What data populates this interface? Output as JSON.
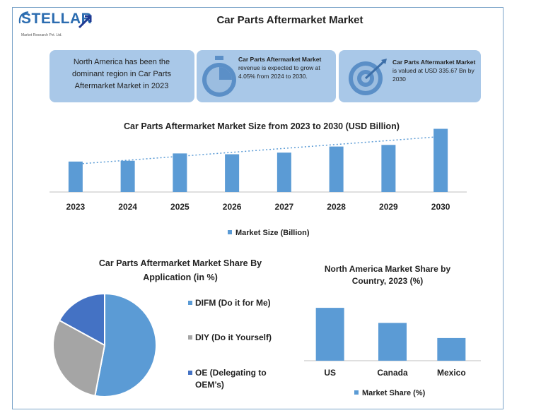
{
  "logo": {
    "text": "STELLAR",
    "subtext": "Market Research Pvt. Ltd."
  },
  "title": "Car Parts Aftermarket Market",
  "cards": [
    {
      "text": "North America has been the dominant region in Car Parts Aftermarket Market in 2023"
    },
    {
      "bold": "Car Parts Aftermarket Market",
      "text": " revenue is expected to grow at 4.05% from 2024 to 2030."
    },
    {
      "bold": "Car Parts Aftermarket Market",
      "text": " is valued at USD 335.67 Bn by 2030"
    }
  ],
  "colors": {
    "accent": "#5b9bd5",
    "card_bg": "#a9c8e8",
    "pie_dark": "#4472c4",
    "pie_grey": "#a5a5a5",
    "trend": "#5b9bd5"
  },
  "chart_data": [
    {
      "type": "bar",
      "title": "Car Parts Aftermarket Market Size from 2023 to 2030 (USD Billion)",
      "categories": [
        "2023",
        "2024",
        "2025",
        "2026",
        "2027",
        "2028",
        "2029",
        "2030"
      ],
      "series": [
        {
          "name": "Market Size (Billion)",
          "values": [
            255,
            257,
            275,
            273,
            277,
            292,
            296,
            335.67
          ]
        }
      ],
      "ylim": [
        180,
        340
      ],
      "trendline": true,
      "legend": "bottom",
      "grid": false
    },
    {
      "type": "pie",
      "title": "Car Parts Aftermarket Market Share By Application  (in %)",
      "labels": [
        "DIFM (Do it for Me)",
        "DIY (Do it Yourself)",
        "OE (Delegating to OEM’s)"
      ],
      "values": [
        53,
        30,
        17
      ],
      "legend": "right"
    },
    {
      "type": "bar",
      "title": "North America Market Share by Country, 2023 (%)",
      "categories": [
        "US",
        "Canada",
        "Mexico"
      ],
      "series": [
        {
          "name": "Market Share (%)",
          "values": [
            70,
            50,
            30
          ]
        }
      ],
      "ylim": [
        0,
        100
      ],
      "legend": "bottom",
      "grid": false
    }
  ]
}
